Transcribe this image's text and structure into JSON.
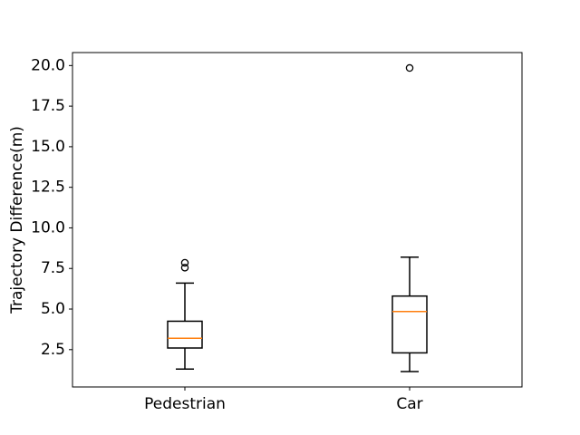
{
  "chart_data": {
    "type": "box",
    "title": "",
    "xlabel": "",
    "ylabel": "Trajectory Difference(m)",
    "ylim": [
      0.2,
      20.8
    ],
    "yticks": [
      2.5,
      5.0,
      7.5,
      10.0,
      12.5,
      15.0,
      17.5,
      20.0
    ],
    "ytick_labels": [
      "2.5",
      "5.0",
      "7.5",
      "10.0",
      "12.5",
      "15.0",
      "17.5",
      "20.0"
    ],
    "grid": false,
    "categories": [
      "Pedestrian",
      "Car"
    ],
    "boxes": [
      {
        "category": "Pedestrian",
        "whisker_low": 1.3,
        "q1": 2.6,
        "median": 3.2,
        "q3": 4.25,
        "whisker_high": 6.6,
        "outliers": [
          7.55,
          7.85
        ]
      },
      {
        "category": "Car",
        "whisker_low": 1.15,
        "q1": 2.3,
        "median": 4.85,
        "q3": 5.8,
        "whisker_high": 8.2,
        "outliers": [
          19.85
        ]
      }
    ],
    "colors": {
      "box": "#000000",
      "median": "#ff7f0e",
      "outlier": "#000000"
    }
  }
}
